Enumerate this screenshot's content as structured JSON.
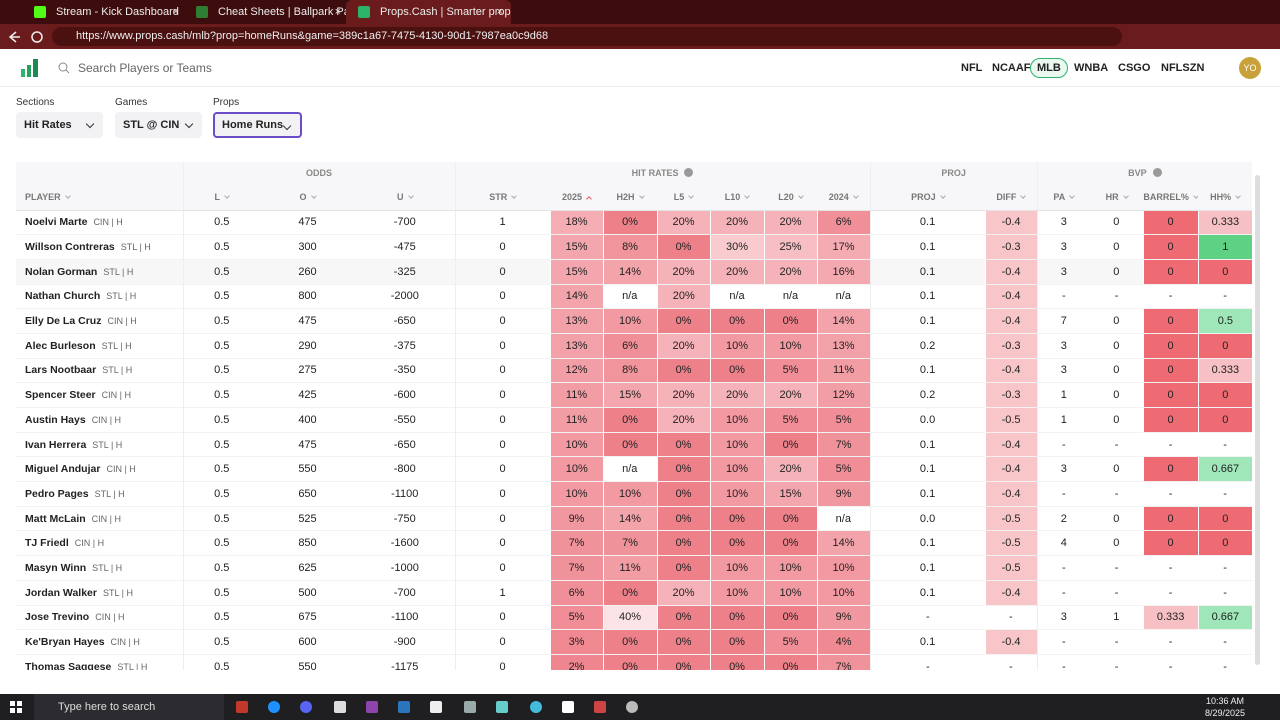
{
  "browser": {
    "tabs": [
      "Stream - Kick Dashboard",
      "Cheat Sheets | Ballpark Pal",
      "Props.Cash | Smarter prop bets. M"
    ],
    "url": "https://www.props.cash/mlb?prop=homeRuns&game=389c1a67-7475-4130-90d1-7987ea0c9d68"
  },
  "nav": {
    "search_placeholder": "Search Players or Teams",
    "leagues": [
      "NFL",
      "NCAAF",
      "MLB",
      "WNBA",
      "CSGO",
      "NFLSZN"
    ],
    "active_league": "MLB",
    "avatar": "YO"
  },
  "filters": [
    {
      "label": "Sections",
      "value": "Hit Rates"
    },
    {
      "label": "Games",
      "value": "STL @ CIN"
    },
    {
      "label": "Props",
      "value": "Home Runs"
    }
  ],
  "table": {
    "groups": [
      "ODDS",
      "HIT RATES",
      "PROJ",
      "BVP"
    ],
    "columns": [
      "PLAYER",
      "L",
      "O",
      "U",
      "STR",
      "2025",
      "H2H",
      "L5",
      "L10",
      "L20",
      "2024",
      "PROJ",
      "DIFF",
      "PA",
      "HR",
      "BARREL%",
      "HH%"
    ],
    "rows": [
      [
        "Noelvi Marte",
        "CIN | H",
        "0.5",
        "475",
        "-700",
        "1",
        "18%",
        "0%",
        "20%",
        "20%",
        "20%",
        "6%",
        "0.1",
        "-0.4",
        "3",
        "0",
        "0",
        "0.333"
      ],
      [
        "Willson Contreras",
        "STL | H",
        "0.5",
        "300",
        "-475",
        "0",
        "15%",
        "8%",
        "0%",
        "30%",
        "25%",
        "17%",
        "0.1",
        "-0.3",
        "3",
        "0",
        "0",
        "1"
      ],
      [
        "Nolan Gorman",
        "STL | H",
        "0.5",
        "260",
        "-325",
        "0",
        "15%",
        "14%",
        "20%",
        "20%",
        "20%",
        "16%",
        "0.1",
        "-0.4",
        "3",
        "0",
        "0",
        "0"
      ],
      [
        "Nathan Church",
        "STL | H",
        "0.5",
        "800",
        "-2000",
        "0",
        "14%",
        "n/a",
        "20%",
        "n/a",
        "n/a",
        "n/a",
        "0.1",
        "-0.4",
        "-",
        "-",
        "-",
        "-"
      ],
      [
        "Elly De La Cruz",
        "CIN | H",
        "0.5",
        "475",
        "-650",
        "0",
        "13%",
        "10%",
        "0%",
        "0%",
        "0%",
        "14%",
        "0.1",
        "-0.4",
        "7",
        "0",
        "0",
        "0.5"
      ],
      [
        "Alec Burleson",
        "STL | H",
        "0.5",
        "290",
        "-375",
        "0",
        "13%",
        "6%",
        "20%",
        "10%",
        "10%",
        "13%",
        "0.2",
        "-0.3",
        "3",
        "0",
        "0",
        "0"
      ],
      [
        "Lars Nootbaar",
        "STL | H",
        "0.5",
        "275",
        "-350",
        "0",
        "12%",
        "8%",
        "0%",
        "0%",
        "5%",
        "11%",
        "0.1",
        "-0.4",
        "3",
        "0",
        "0",
        "0.333"
      ],
      [
        "Spencer Steer",
        "CIN | H",
        "0.5",
        "425",
        "-600",
        "0",
        "11%",
        "15%",
        "20%",
        "20%",
        "20%",
        "12%",
        "0.2",
        "-0.3",
        "1",
        "0",
        "0",
        "0"
      ],
      [
        "Austin Hays",
        "CIN | H",
        "0.5",
        "400",
        "-550",
        "0",
        "11%",
        "0%",
        "20%",
        "10%",
        "5%",
        "5%",
        "0.0",
        "-0.5",
        "1",
        "0",
        "0",
        "0"
      ],
      [
        "Ivan Herrera",
        "STL | H",
        "0.5",
        "475",
        "-650",
        "0",
        "10%",
        "0%",
        "0%",
        "10%",
        "0%",
        "7%",
        "0.1",
        "-0.4",
        "-",
        "-",
        "-",
        "-"
      ],
      [
        "Miguel Andujar",
        "CIN | H",
        "0.5",
        "550",
        "-800",
        "0",
        "10%",
        "n/a",
        "0%",
        "10%",
        "20%",
        "5%",
        "0.1",
        "-0.4",
        "3",
        "0",
        "0",
        "0.667"
      ],
      [
        "Pedro Pages",
        "STL | H",
        "0.5",
        "650",
        "-1100",
        "0",
        "10%",
        "10%",
        "0%",
        "10%",
        "15%",
        "9%",
        "0.1",
        "-0.4",
        "-",
        "-",
        "-",
        "-"
      ],
      [
        "Matt McLain",
        "CIN | H",
        "0.5",
        "525",
        "-750",
        "0",
        "9%",
        "14%",
        "0%",
        "0%",
        "0%",
        "n/a",
        "0.0",
        "-0.5",
        "2",
        "0",
        "0",
        "0"
      ],
      [
        "TJ Friedl",
        "CIN | H",
        "0.5",
        "850",
        "-1600",
        "0",
        "7%",
        "7%",
        "0%",
        "0%",
        "0%",
        "14%",
        "0.1",
        "-0.5",
        "4",
        "0",
        "0",
        "0"
      ],
      [
        "Masyn Winn",
        "STL | H",
        "0.5",
        "625",
        "-1000",
        "0",
        "7%",
        "11%",
        "0%",
        "10%",
        "10%",
        "10%",
        "0.1",
        "-0.5",
        "-",
        "-",
        "-",
        "-"
      ],
      [
        "Jordan Walker",
        "STL | H",
        "0.5",
        "500",
        "-700",
        "1",
        "6%",
        "0%",
        "20%",
        "10%",
        "10%",
        "10%",
        "0.1",
        "-0.4",
        "-",
        "-",
        "-",
        "-"
      ],
      [
        "Jose Trevino",
        "CIN | H",
        "0.5",
        "675",
        "-1100",
        "0",
        "5%",
        "40%",
        "0%",
        "0%",
        "0%",
        "9%",
        "-",
        "-",
        "3",
        "1",
        "0.333",
        "0.667"
      ],
      [
        "Ke'Bryan Hayes",
        "CIN | H",
        "0.5",
        "600",
        "-900",
        "0",
        "3%",
        "0%",
        "0%",
        "0%",
        "5%",
        "4%",
        "0.1",
        "-0.4",
        "-",
        "-",
        "-",
        "-"
      ],
      [
        "Thomas Saggese",
        "STL | H",
        "0.5",
        "550",
        "-1175",
        "0",
        "2%",
        "0%",
        "0%",
        "0%",
        "0%",
        "7%",
        "-",
        "-",
        "-",
        "-",
        "-",
        "-"
      ]
    ]
  },
  "taskbar": {
    "search": "Type here to search",
    "time": "10:36 AM",
    "date": "8/29/2025"
  }
}
